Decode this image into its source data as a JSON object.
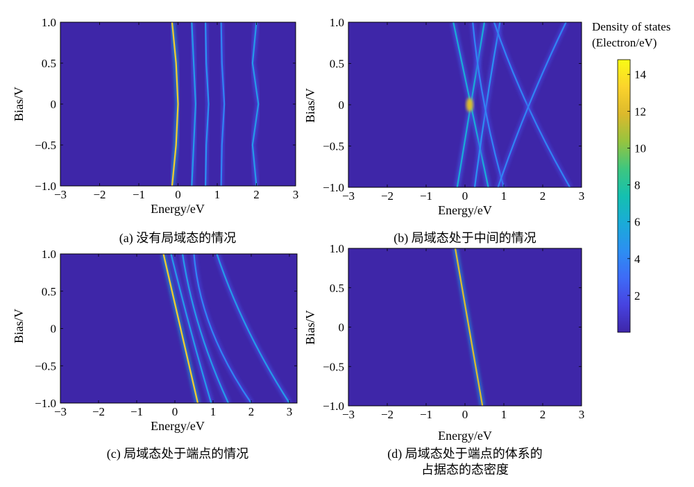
{
  "colorbar": {
    "title_line1": "Density of states",
    "title_line2": "(Electron/eV)",
    "ticks": [
      2,
      4,
      6,
      8,
      10,
      12,
      14
    ],
    "tick_labels": [
      "2",
      "4",
      "6",
      "8",
      "10",
      "12",
      "14"
    ],
    "range": [
      0,
      14.8
    ],
    "colormap": [
      "#3e26a8",
      "#4743e0",
      "#3e6bf7",
      "#2c8ff2",
      "#1aabd8",
      "#14c0b0",
      "#3ec67f",
      "#96c43f",
      "#dcb92c",
      "#fbd32c",
      "#f9fb15"
    ]
  },
  "chart_data": [
    {
      "type": "heatmap",
      "panel": "a",
      "caption": "(a) 没有局域态的情况",
      "xlabel": "Energy/eV",
      "ylabel": "Bias/V",
      "xlim": [
        -3,
        3
      ],
      "ylim": [
        -1,
        1
      ],
      "xticks": [
        -3,
        -2,
        -1,
        0,
        1,
        2,
        3
      ],
      "xtick_labels": [
        "−3",
        "−2",
        "−1",
        "0",
        "1",
        "2",
        "3"
      ],
      "yticks": [
        1,
        0.5,
        0,
        -0.5,
        -1
      ],
      "ytick_labels": [
        "1.0",
        "0.5",
        "0",
        "−0.5",
        "−1.0"
      ],
      "lines": [
        {
          "bias": [
            -1,
            -0.5,
            0,
            0.5,
            1
          ],
          "energy": [
            -0.15,
            -0.05,
            0.0,
            -0.05,
            -0.15
          ],
          "peak": 13
        },
        {
          "bias": [
            -1,
            -0.5,
            0,
            0.5,
            1
          ],
          "energy": [
            0.35,
            0.4,
            0.45,
            0.4,
            0.35
          ],
          "peak": 5
        },
        {
          "bias": [
            -1,
            -0.5,
            0,
            0.5,
            1
          ],
          "energy": [
            0.7,
            0.72,
            0.78,
            0.72,
            0.7
          ],
          "peak": 4.5
        },
        {
          "bias": [
            -1,
            -0.5,
            0,
            0.5,
            1
          ],
          "energy": [
            1.1,
            1.12,
            1.18,
            1.12,
            1.1
          ],
          "peak": 4
        },
        {
          "bias": [
            -1,
            -0.5,
            0,
            0.5,
            1
          ],
          "energy": [
            2.0,
            1.9,
            2.05,
            1.9,
            2.0
          ],
          "peak": 5
        }
      ]
    },
    {
      "type": "heatmap",
      "panel": "b",
      "caption": "(b) 局域态处于中间的情况",
      "xlabel": "Energy/eV",
      "ylabel": "Bias/V",
      "xlim": [
        -3,
        3
      ],
      "ylim": [
        -1,
        1
      ],
      "xticks": [
        -3,
        -2,
        -1,
        0,
        1,
        2,
        3
      ],
      "xtick_labels": [
        "−3",
        "−2",
        "−1",
        "0",
        "1",
        "2",
        "3"
      ],
      "yticks": [
        1,
        0.5,
        0,
        -0.5,
        -1
      ],
      "ytick_labels": [
        "1.0",
        "0.5",
        "0",
        "−0.5",
        "−1.0"
      ],
      "lines": [
        {
          "bias": [
            -1,
            0,
            1
          ],
          "energy": [
            -0.2,
            0.15,
            0.5
          ],
          "peak": 6
        },
        {
          "bias": [
            -1,
            0,
            1
          ],
          "energy": [
            0.6,
            0.15,
            -0.3
          ],
          "peak": 6
        },
        {
          "bias": [
            -1,
            0,
            1
          ],
          "energy": [
            0.25,
            0.55,
            0.9
          ],
          "peak": 4.5
        },
        {
          "bias": [
            -1,
            0,
            1
          ],
          "energy": [
            1.0,
            0.5,
            0.2
          ],
          "peak": 4
        },
        {
          "bias": [
            -1,
            0,
            1
          ],
          "energy": [
            2.7,
            1.6,
            0.75
          ],
          "peak": 4
        },
        {
          "bias": [
            -1,
            0,
            1
          ],
          "energy": [
            0.85,
            1.65,
            2.6
          ],
          "peak": 4
        }
      ],
      "hotspot": {
        "energy": 0.12,
        "bias": 0.0,
        "peak": 12
      }
    },
    {
      "type": "heatmap",
      "panel": "c",
      "caption": "(c) 局域态处于端点的情况",
      "xlabel": "Energy/eV",
      "ylabel": "Bias/V",
      "xlim": [
        -3,
        3.2
      ],
      "ylim": [
        -1,
        1
      ],
      "xticks": [
        -3,
        -2,
        -1,
        0,
        1,
        2,
        3
      ],
      "xtick_labels": [
        "−3",
        "−2",
        "−1",
        "0",
        "1",
        "2",
        "3"
      ],
      "yticks": [
        1,
        0.5,
        0,
        -0.5,
        -1
      ],
      "ytick_labels": [
        "1.0",
        "0.5",
        "0",
        "−0.5",
        "−1.0"
      ],
      "lines": [
        {
          "bias": [
            -1,
            0,
            1
          ],
          "energy": [
            0.6,
            0.15,
            -0.3
          ],
          "peak": 13
        },
        {
          "bias": [
            -1,
            0,
            1
          ],
          "energy": [
            0.95,
            0.4,
            -0.1
          ],
          "peak": 5
        },
        {
          "bias": [
            -1,
            0,
            1
          ],
          "energy": [
            1.4,
            0.65,
            0.2
          ],
          "peak": 5
        },
        {
          "bias": [
            -1,
            0,
            1
          ],
          "energy": [
            2.0,
            0.95,
            0.5
          ],
          "peak": 4
        },
        {
          "bias": [
            -1,
            0,
            1
          ],
          "energy": [
            3.0,
            1.9,
            1.1
          ],
          "peak": 5
        }
      ]
    },
    {
      "type": "heatmap",
      "panel": "d",
      "caption": [
        "(d) 局域态处于端点的体系的",
        "占据态的态密度"
      ],
      "xlabel": "Energy/eV",
      "ylabel": "Bias/V",
      "xlim": [
        -3,
        3
      ],
      "ylim": [
        -1,
        1
      ],
      "xticks": [
        -3,
        -2,
        -1,
        0,
        1,
        2,
        3
      ],
      "xtick_labels": [
        "−3",
        "−2",
        "−1",
        "0",
        "1",
        "2",
        "3"
      ],
      "yticks": [
        1,
        0.5,
        0,
        -0.5,
        -1
      ],
      "ytick_labels": [
        "1.0",
        "0.5",
        "0",
        "−0.5",
        "−1.0"
      ],
      "lines": [
        {
          "bias": [
            -1,
            0,
            1
          ],
          "energy": [
            0.45,
            0.1,
            -0.25
          ],
          "peak": 12
        }
      ]
    }
  ]
}
